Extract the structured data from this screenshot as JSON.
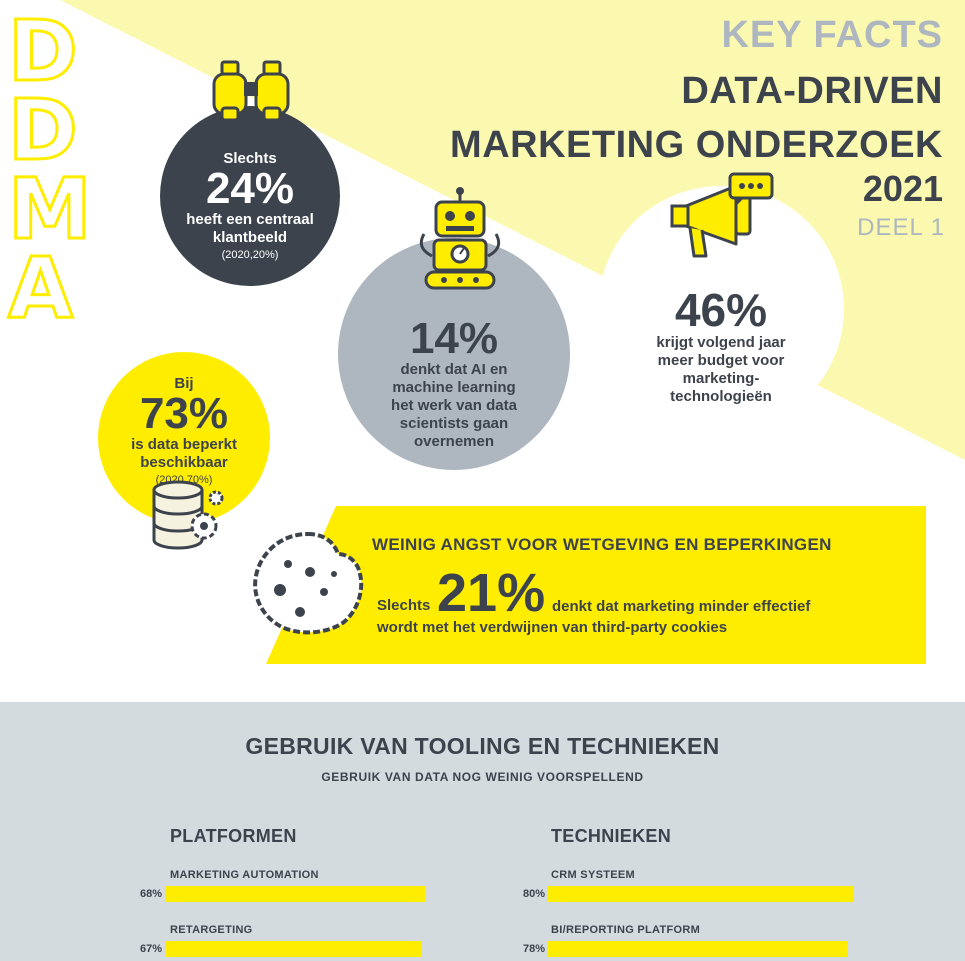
{
  "colors": {
    "yellow": "#ffed00",
    "pale_yellow": "#fbf9b0",
    "dark": "#3d434c",
    "grey": "#aeb7c0",
    "light_grey": "#d3dbdf"
  },
  "logo": {
    "letters": [
      "D",
      "D",
      "M",
      "A"
    ]
  },
  "header": {
    "key_facts": "KEY FACTS",
    "line1": "DATA-DRIVEN",
    "line2": "MARKETING ONDERZOEK",
    "year": "2021",
    "part": "DEEL 1"
  },
  "facts": {
    "central": {
      "pre": "Slechts",
      "value": "24%",
      "line1": "heeft een centraal",
      "line2": "klantbeeld",
      "note": "(2020,20%)",
      "icon": "binoculars-icon"
    },
    "ai": {
      "value": "14%",
      "lines": [
        "denkt dat AI en",
        "machine learning",
        "het werk van data",
        "scientists gaan",
        "overnemen"
      ],
      "icon": "robot-icon"
    },
    "data": {
      "pre": "Bij",
      "value": "73%",
      "line1": "is data beperkt",
      "line2": "beschikbaar",
      "note": "(2020,70%)",
      "icon": "database-gear-icon"
    },
    "budget": {
      "value": "46%",
      "lines": [
        "krijgt volgend jaar",
        "meer budget voor",
        "marketing-",
        "technologieën"
      ],
      "icon": "megaphone-icon"
    }
  },
  "banner": {
    "heading": "WEINIG ANGST VOOR WETGEVING EN BEPERKINGEN",
    "pre": "Slechts",
    "value": "21%",
    "line1": "denkt dat marketing minder effectief",
    "line2": "wordt met het verdwijnen van third-party cookies",
    "icon": "cookie-icon"
  },
  "tooling": {
    "title": "GEBRUIK VAN TOOLING EN TECHNIEKEN",
    "subtitle": "GEBRUIK VAN DATA NOG WEINIG VOORSPELLEND",
    "platformen": {
      "heading": "PLATFORMEN",
      "items": [
        {
          "label": "MARKETING AUTOMATION",
          "pct": "68%",
          "value": 68
        },
        {
          "label": "RETARGETING",
          "pct": "67%",
          "value": 67
        }
      ]
    },
    "technieken": {
      "heading": "TECHNIEKEN",
      "items": [
        {
          "label": "CRM SYSTEEM",
          "pct": "80%",
          "value": 80
        },
        {
          "label": "BI/REPORTING PLATFORM",
          "pct": "78%",
          "value": 78
        }
      ]
    }
  }
}
